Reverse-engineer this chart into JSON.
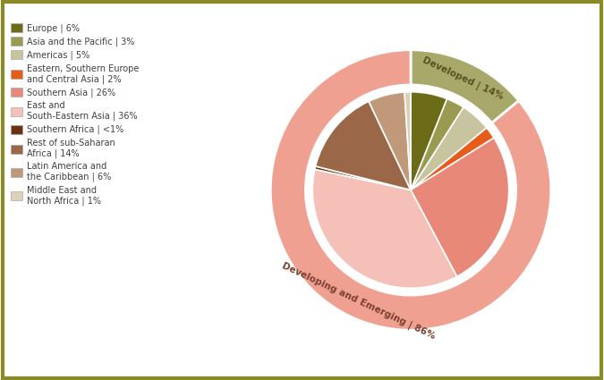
{
  "outer_labels": [
    "Developed | 14%",
    "Developing and Emerging | 86%"
  ],
  "outer_values": [
    14,
    86
  ],
  "outer_colors": [
    "#a8a86a",
    "#f0a090"
  ],
  "inner_values": [
    6,
    3,
    5,
    2,
    26,
    36,
    0.5,
    14,
    6,
    1
  ],
  "inner_colors": [
    "#6b6b18",
    "#9a9a50",
    "#c8c4a0",
    "#e85c1a",
    "#e88878",
    "#f5c0b8",
    "#6a3010",
    "#9a6848",
    "#c0987a",
    "#ddd0b8"
  ],
  "legend_labels": [
    "Europe | 6%",
    "Asia and the Pacific | 3%",
    "Americas | 5%",
    "Eastern, Southern Europe\nand Central Asia | 2%",
    "Southern Asia | 26%",
    "East and\nSouth-Eastern Asia | 36%",
    "Southern Africa | <1%",
    "Rest of sub-Saharan\nAfrica | 14%",
    "Latin America and\nthe Caribbean | 6%",
    "Middle East and\nNorth Africa | 1%"
  ],
  "background_color": "#ffffff",
  "border_color": "#8a8a28",
  "outer_ring_bg_color": "#f0a090",
  "white_gap_color": "#ffffff",
  "label_developed_color": "#5a5020",
  "label_developing_color": "#7a4030",
  "text_color": "#404040"
}
